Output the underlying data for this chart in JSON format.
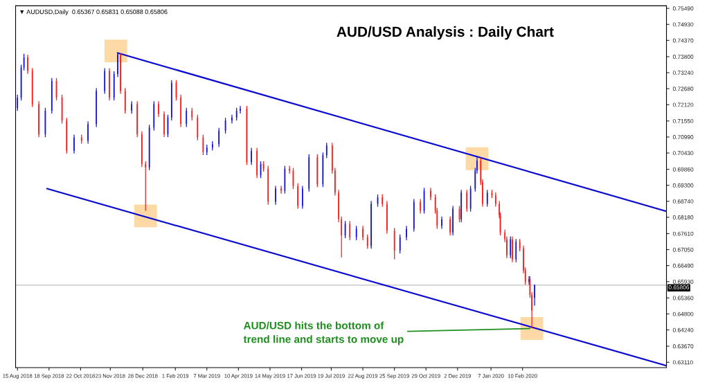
{
  "chart_data": {
    "type": "candlestick",
    "title": "AUD/USD Analysis : Daily Chart",
    "subtitle": "▼ AUDUSD,Daily  0.65367 0.65831 0.65088 0.65806",
    "x": [
      "2018-08-15",
      "2018-08-19",
      "2018-08-22",
      "2018-08-26",
      "2018-08-31",
      "2018-09-07",
      "2018-09-14",
      "2018-09-21",
      "2018-09-26",
      "2018-10-02",
      "2018-10-07",
      "2018-10-15",
      "2018-10-23",
      "2018-10-30",
      "2018-11-08",
      "2018-11-17",
      "2018-11-22",
      "2018-11-27",
      "2018-12-01",
      "2018-12-04",
      "2018-12-09",
      "2018-12-16",
      "2018-12-22",
      "2018-12-27",
      "2018-12-31",
      "2019-01-04",
      "2019-01-09",
      "2019-01-14",
      "2019-01-20",
      "2019-01-24",
      "2019-01-28",
      "2019-02-02",
      "2019-02-07",
      "2019-02-13",
      "2019-02-19",
      "2019-02-25",
      "2019-03-03",
      "2019-03-07",
      "2019-03-13",
      "2019-03-20",
      "2019-03-27",
      "2019-04-03",
      "2019-04-08",
      "2019-04-12",
      "2019-04-19",
      "2019-04-24",
      "2019-04-30",
      "2019-05-04",
      "2019-05-07",
      "2019-05-12",
      "2019-05-20",
      "2019-05-26",
      "2019-05-30",
      "2019-06-04",
      "2019-06-08",
      "2019-06-13",
      "2019-06-18",
      "2019-06-25",
      "2019-07-04",
      "2019-07-10",
      "2019-07-14",
      "2019-07-20",
      "2019-07-23",
      "2019-07-27",
      "2019-07-30",
      "2019-08-03",
      "2019-08-08",
      "2019-08-15",
      "2019-08-22",
      "2019-08-27",
      "2019-08-31",
      "2019-09-07",
      "2019-09-12",
      "2019-09-17",
      "2019-09-25",
      "2019-10-01",
      "2019-10-08",
      "2019-10-16",
      "2019-10-23",
      "2019-10-27",
      "2019-11-03",
      "2019-11-08",
      "2019-11-10",
      "2019-11-15",
      "2019-11-24",
      "2019-11-27",
      "2019-12-04",
      "2019-12-06",
      "2019-12-12",
      "2019-12-16",
      "2019-12-21",
      "2019-12-23",
      "2019-12-27",
      "2019-12-29",
      "2020-01-03",
      "2020-01-08",
      "2020-01-12",
      "2020-01-16",
      "2020-01-17",
      "2020-01-22",
      "2020-01-24",
      "2020-01-28",
      "2020-01-30",
      "2020-02-03",
      "2020-02-07",
      "2020-02-11",
      "2020-02-13",
      "2020-02-17",
      "2020-02-18",
      "2020-02-20",
      "2020-02-23"
    ],
    "ohlc": [
      [
        0.72,
        0.7247,
        0.719,
        0.7237
      ],
      [
        0.7237,
        0.7352,
        0.7227,
        0.7342
      ],
      [
        0.7342,
        0.739,
        0.7332,
        0.7377
      ],
      [
        0.7377,
        0.7387,
        0.732,
        0.733
      ],
      [
        0.733,
        0.734,
        0.7204,
        0.7214
      ],
      [
        0.7214,
        0.7224,
        0.7099,
        0.7109
      ],
      [
        0.7109,
        0.7201,
        0.7099,
        0.7191
      ],
      [
        0.7191,
        0.7305,
        0.7181,
        0.7295
      ],
      [
        0.7295,
        0.7305,
        0.7227,
        0.7237
      ],
      [
        0.7237,
        0.7247,
        0.7146,
        0.7156
      ],
      [
        0.7156,
        0.7166,
        0.7041,
        0.7051
      ],
      [
        0.7051,
        0.7107,
        0.7041,
        0.7097
      ],
      [
        0.7097,
        0.7107,
        0.7076,
        0.7086
      ],
      [
        0.7086,
        0.7154,
        0.7076,
        0.7144
      ],
      [
        0.7144,
        0.727,
        0.7134,
        0.726
      ],
      [
        0.726,
        0.734,
        0.725,
        0.733
      ],
      [
        0.733,
        0.734,
        0.7227,
        0.7237
      ],
      [
        0.7237,
        0.7329,
        0.7227,
        0.7319
      ],
      [
        0.7319,
        0.7394,
        0.7309,
        0.7388
      ],
      [
        0.7388,
        0.7392,
        0.725,
        0.726
      ],
      [
        0.726,
        0.727,
        0.7181,
        0.7191
      ],
      [
        0.7191,
        0.7224,
        0.7181,
        0.7214
      ],
      [
        0.7214,
        0.7224,
        0.7099,
        0.7109
      ],
      [
        0.7109,
        0.7119,
        0.6994,
        0.7004
      ],
      [
        0.7004,
        0.7014,
        0.6841,
        0.6993
      ],
      [
        0.6993,
        0.7142,
        0.6983,
        0.7132
      ],
      [
        0.7132,
        0.7224,
        0.7122,
        0.7214
      ],
      [
        0.7214,
        0.7224,
        0.7169,
        0.7179
      ],
      [
        0.7179,
        0.7189,
        0.7099,
        0.7109
      ],
      [
        0.7109,
        0.7177,
        0.7099,
        0.7167
      ],
      [
        0.7167,
        0.7298,
        0.7157,
        0.7288
      ],
      [
        0.7288,
        0.7298,
        0.7227,
        0.7237
      ],
      [
        0.7237,
        0.7247,
        0.7134,
        0.7144
      ],
      [
        0.7144,
        0.7201,
        0.7134,
        0.7191
      ],
      [
        0.7191,
        0.7201,
        0.7157,
        0.7167
      ],
      [
        0.7167,
        0.7177,
        0.7087,
        0.7097
      ],
      [
        0.7097,
        0.7107,
        0.7036,
        0.7046
      ],
      [
        0.7046,
        0.7072,
        0.7036,
        0.7062
      ],
      [
        0.7062,
        0.7084,
        0.7052,
        0.7074
      ],
      [
        0.7074,
        0.7131,
        0.7064,
        0.7121
      ],
      [
        0.7121,
        0.7166,
        0.7111,
        0.7156
      ],
      [
        0.7156,
        0.7177,
        0.7146,
        0.7167
      ],
      [
        0.7167,
        0.7201,
        0.7157,
        0.7191
      ],
      [
        0.7191,
        0.7208,
        0.7181,
        0.7198
      ],
      [
        0.7198,
        0.7208,
        0.7001,
        0.7011
      ],
      [
        0.7011,
        0.7061,
        0.7001,
        0.7051
      ],
      [
        0.7051,
        0.7061,
        0.6955,
        0.6965
      ],
      [
        0.6965,
        0.7014,
        0.6955,
        0.7004
      ],
      [
        0.7004,
        0.7014,
        0.6978,
        0.6988
      ],
      [
        0.6988,
        0.6998,
        0.6862,
        0.6872
      ],
      [
        0.6872,
        0.6928,
        0.6862,
        0.6918
      ],
      [
        0.6918,
        0.6928,
        0.6901,
        0.6911
      ],
      [
        0.6911,
        0.6998,
        0.6901,
        0.6988
      ],
      [
        0.6988,
        0.6998,
        0.6971,
        0.6981
      ],
      [
        0.6981,
        0.6991,
        0.6917,
        0.6927
      ],
      [
        0.6927,
        0.6937,
        0.6848,
        0.6858
      ],
      [
        0.6858,
        0.6928,
        0.6848,
        0.6918
      ],
      [
        0.6918,
        0.7038,
        0.6908,
        0.7028
      ],
      [
        0.7028,
        0.7038,
        0.6924,
        0.6934
      ],
      [
        0.6934,
        0.7045,
        0.6924,
        0.7035
      ],
      [
        0.7035,
        0.7079,
        0.7025,
        0.7069
      ],
      [
        0.7069,
        0.7079,
        0.6971,
        0.6981
      ],
      [
        0.6981,
        0.6991,
        0.6894,
        0.6904
      ],
      [
        0.6904,
        0.6914,
        0.6801,
        0.6811
      ],
      [
        0.6811,
        0.6821,
        0.6678,
        0.6755
      ],
      [
        0.6755,
        0.6805,
        0.6745,
        0.6795
      ],
      [
        0.6795,
        0.6805,
        0.6738,
        0.6748
      ],
      [
        0.6748,
        0.6788,
        0.6738,
        0.6778
      ],
      [
        0.6778,
        0.6788,
        0.6738,
        0.6748
      ],
      [
        0.6748,
        0.6758,
        0.6708,
        0.6718
      ],
      [
        0.6718,
        0.6875,
        0.6708,
        0.6865
      ],
      [
        0.6865,
        0.6898,
        0.6855,
        0.6888
      ],
      [
        0.6888,
        0.6898,
        0.6855,
        0.6865
      ],
      [
        0.6865,
        0.6875,
        0.6761,
        0.6771
      ],
      [
        0.6771,
        0.6781,
        0.6671,
        0.6702
      ],
      [
        0.6702,
        0.6758,
        0.6692,
        0.6748
      ],
      [
        0.6748,
        0.6788,
        0.6738,
        0.6778
      ],
      [
        0.6778,
        0.6882,
        0.6768,
        0.6872
      ],
      [
        0.6872,
        0.6882,
        0.6831,
        0.6841
      ],
      [
        0.6841,
        0.6921,
        0.6831,
        0.6911
      ],
      [
        0.6911,
        0.6921,
        0.6878,
        0.6888
      ],
      [
        0.6888,
        0.6898,
        0.6831,
        0.6841
      ],
      [
        0.6841,
        0.6851,
        0.6778,
        0.6788
      ],
      [
        0.6788,
        0.6821,
        0.6778,
        0.6811
      ],
      [
        0.6811,
        0.6821,
        0.6755,
        0.6765
      ],
      [
        0.6765,
        0.6858,
        0.6755,
        0.6848
      ],
      [
        0.6848,
        0.6858,
        0.6801,
        0.6811
      ],
      [
        0.6811,
        0.6914,
        0.6801,
        0.6904
      ],
      [
        0.6904,
        0.6914,
        0.6838,
        0.6848
      ],
      [
        0.6848,
        0.6928,
        0.6838,
        0.6918
      ],
      [
        0.6918,
        0.6991,
        0.6908,
        0.6981
      ],
      [
        0.6981,
        0.7032,
        0.6971,
        0.7016
      ],
      [
        0.7016,
        0.7026,
        0.6931,
        0.6941
      ],
      [
        0.6941,
        0.6951,
        0.6855,
        0.6865
      ],
      [
        0.6865,
        0.6914,
        0.6855,
        0.6904
      ],
      [
        0.6904,
        0.6914,
        0.6885,
        0.6895
      ],
      [
        0.6895,
        0.6905,
        0.6855,
        0.6865
      ],
      [
        0.6865,
        0.6875,
        0.6815,
        0.6825
      ],
      [
        0.6825,
        0.6835,
        0.6755,
        0.6765
      ],
      [
        0.6765,
        0.6775,
        0.6731,
        0.6741
      ],
      [
        0.6741,
        0.6751,
        0.6675,
        0.6685
      ],
      [
        0.6685,
        0.6751,
        0.6675,
        0.6741
      ],
      [
        0.6741,
        0.6751,
        0.6661,
        0.6671
      ],
      [
        0.6671,
        0.6742,
        0.6661,
        0.6732
      ],
      [
        0.6732,
        0.6742,
        0.6699,
        0.6709
      ],
      [
        0.6709,
        0.6719,
        0.6622,
        0.6632
      ],
      [
        0.6632,
        0.6642,
        0.6582,
        0.6592
      ],
      [
        0.6592,
        0.6612,
        0.6582,
        0.6602
      ],
      [
        0.6602,
        0.6612,
        0.6536,
        0.6546
      ],
      [
        0.6546,
        0.6556,
        0.6429,
        0.6492
      ],
      [
        0.65367,
        0.65831,
        0.65088,
        0.65806
      ]
    ],
    "colors": [
      "#1515d6",
      "#1515d6",
      "#1515d6",
      "#ff1a1a",
      "#ff1a1a",
      "#ff1a1a",
      "#1515d6",
      "#1515d6",
      "#ff1a1a",
      "#ff1a1a",
      "#ff1a1a",
      "#1515d6",
      "#ff1a1a",
      "#1515d6",
      "#1515d6",
      "#1515d6",
      "#ff1a1a",
      "#1515d6",
      "#1515d6",
      "#ff1a1a",
      "#ff1a1a",
      "#1515d6",
      "#ff1a1a",
      "#ff1a1a",
      "#ff1a1a",
      "#1515d6",
      "#1515d6",
      "#ff1a1a",
      "#ff1a1a",
      "#1515d6",
      "#1515d6",
      "#ff1a1a",
      "#ff1a1a",
      "#1515d6",
      "#ff1a1a",
      "#ff1a1a",
      "#ff1a1a",
      "#1515d6",
      "#1515d6",
      "#1515d6",
      "#1515d6",
      "#1515d6",
      "#1515d6",
      "#1515d6",
      "#ff1a1a",
      "#1515d6",
      "#ff1a1a",
      "#1515d6",
      "#ff1a1a",
      "#ff1a1a",
      "#1515d6",
      "#ff1a1a",
      "#1515d6",
      "#ff1a1a",
      "#ff1a1a",
      "#ff1a1a",
      "#1515d6",
      "#1515d6",
      "#ff1a1a",
      "#1515d6",
      "#1515d6",
      "#ff1a1a",
      "#ff1a1a",
      "#ff1a1a",
      "#ff1a1a",
      "#1515d6",
      "#ff1a1a",
      "#1515d6",
      "#ff1a1a",
      "#ff1a1a",
      "#1515d6",
      "#1515d6",
      "#ff1a1a",
      "#ff1a1a",
      "#ff1a1a",
      "#1515d6",
      "#1515d6",
      "#1515d6",
      "#ff1a1a",
      "#1515d6",
      "#ff1a1a",
      "#ff1a1a",
      "#ff1a1a",
      "#1515d6",
      "#ff1a1a",
      "#1515d6",
      "#ff1a1a",
      "#1515d6",
      "#ff1a1a",
      "#1515d6",
      "#1515d6",
      "#1515d6",
      "#ff1a1a",
      "#ff1a1a",
      "#1515d6",
      "#ff1a1a",
      "#ff1a1a",
      "#ff1a1a",
      "#ff1a1a",
      "#ff1a1a",
      "#ff1a1a",
      "#1515d6",
      "#ff1a1a",
      "#1515d6",
      "#ff1a1a",
      "#ff1a1a",
      "#ff1a1a",
      "#1515d6",
      "#ff1a1a",
      "#ff1a1a",
      "#1515d6"
    ],
    "series": [
      {
        "type": "scatter",
        "marker": "square",
        "color": "#fdd9a5",
        "x": [
          "2018-11-29",
          "2018-12-31",
          "2019-12-23",
          "2020-02-20"
        ],
        "values": [
          0.74,
          0.6823,
          0.7023,
          0.6429
        ]
      },
      {
        "type": "line",
        "color": "#0a0ad2",
        "x": [
          "2018-12-01",
          "2020-07-14"
        ],
        "values": [
          0.7393,
          0.6839
        ]
      },
      {
        "type": "line",
        "color": "#0a0ad2",
        "x": [
          "2018-09-16",
          "2020-07-14"
        ],
        "values": [
          0.6918,
          0.6299
        ]
      }
    ],
    "ref_lines": [
      {
        "axis": "y",
        "value": 0.65806,
        "label": "0.65806",
        "color": "#c0c0c0"
      }
    ],
    "annotations": [
      {
        "text": "AUD/USD hits the bottom of\ntrend line and starts to move up",
        "x": "2020-02-20",
        "y": 0.6429
      }
    ],
    "xlim": [
      "2018-08-13",
      "2020-07-14"
    ],
    "xticks": [
      {
        "value": "2018-08-15",
        "label": "15 Aug 2018"
      },
      {
        "value": "2018-09-18",
        "label": "18 Sep 2018"
      },
      {
        "value": "2018-10-22",
        "label": "22 Oct 2018"
      },
      {
        "value": "2018-11-23",
        "label": "23 Nov 2018"
      },
      {
        "value": "2018-12-28",
        "label": "28 Dec 2018"
      },
      {
        "value": "2019-02-01",
        "label": "1 Feb 2019"
      },
      {
        "value": "2019-03-07",
        "label": "7 Mar 2019"
      },
      {
        "value": "2019-04-10",
        "label": "10 Apr 2019"
      },
      {
        "value": "2019-05-14",
        "label": "14 May 2019"
      },
      {
        "value": "2019-06-17",
        "label": "17 Jun 2019"
      },
      {
        "value": "2019-07-19",
        "label": "19 Jul 2019"
      },
      {
        "value": "2019-08-22",
        "label": "22 Aug 2019"
      },
      {
        "value": "2019-09-25",
        "label": "25 Sep 2019"
      },
      {
        "value": "2019-10-29",
        "label": "29 Oct 2019"
      },
      {
        "value": "2019-12-02",
        "label": "2 Dec 2019"
      },
      {
        "value": "2020-01-07",
        "label": "7 Jan 2020"
      },
      {
        "value": "2020-02-10",
        "label": "10 Feb 2020"
      }
    ],
    "ylim": [
      0.6292,
      0.7558
    ],
    "yticks": [
      {
        "value": 0.7549,
        "label": "0.75490"
      },
      {
        "value": 0.7493,
        "label": "0.74930"
      },
      {
        "value": 0.7437,
        "label": "0.74370"
      },
      {
        "value": 0.738,
        "label": "0.73800"
      },
      {
        "value": 0.7324,
        "label": "0.73240"
      },
      {
        "value": 0.7268,
        "label": "0.72680"
      },
      {
        "value": 0.7212,
        "label": "0.72120"
      },
      {
        "value": 0.7155,
        "label": "0.71550"
      },
      {
        "value": 0.7099,
        "label": "0.70990"
      },
      {
        "value": 0.7043,
        "label": "0.70430"
      },
      {
        "value": 0.6986,
        "label": "0.69860"
      },
      {
        "value": 0.693,
        "label": "0.69300"
      },
      {
        "value": 0.6874,
        "label": "0.68740"
      },
      {
        "value": 0.6818,
        "label": "0.68180"
      },
      {
        "value": 0.6761,
        "label": "0.67610"
      },
      {
        "value": 0.6705,
        "label": "0.67050"
      },
      {
        "value": 0.6649,
        "label": "0.66490"
      },
      {
        "value": 0.6593,
        "label": "0.65930"
      },
      {
        "value": 0.6536,
        "label": "0.65360"
      },
      {
        "value": 0.648,
        "label": "0.64800"
      },
      {
        "value": 0.6424,
        "label": "0.64240"
      },
      {
        "value": 0.6367,
        "label": "0.63670"
      },
      {
        "value": 0.6311,
        "label": "0.63110"
      }
    ],
    "grid": false,
    "legend": false
  }
}
